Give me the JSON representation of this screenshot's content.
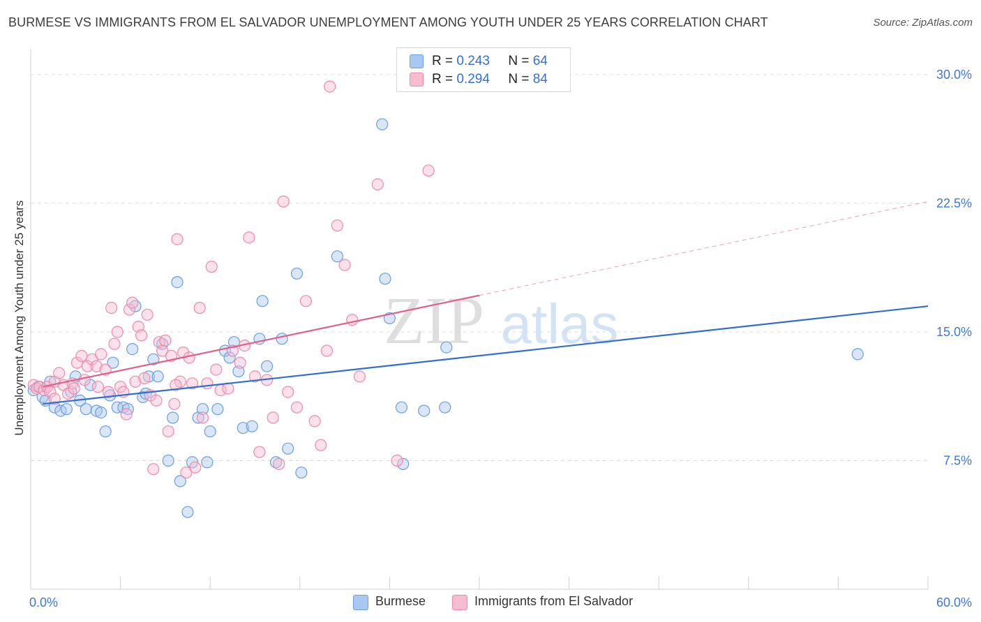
{
  "title": "BURMESE VS IMMIGRANTS FROM EL SALVADOR UNEMPLOYMENT AMONG YOUTH UNDER 25 YEARS CORRELATION CHART",
  "source": "Source: ZipAtlas.com",
  "watermark": {
    "zip": "ZIP",
    "atlas": "atlas"
  },
  "legend_top": {
    "r_label": "R =",
    "n_label": "N =",
    "rows": [
      {
        "r": "0.243",
        "n": "64"
      },
      {
        "r": "0.294",
        "n": "84"
      }
    ]
  },
  "colors": {
    "burmese_fill": "#a8c8f0",
    "burmese_stroke": "#6a9ee0",
    "burmese_line": "#2f6fd0",
    "salvador_fill": "#f8bcd0",
    "salvador_stroke": "#ec8aaa",
    "salvador_line": "#e0608a",
    "grid": "#dddddd",
    "axis_text": "#3c78d8"
  },
  "chart_data": {
    "type": "scatter",
    "title": "BURMESE VS IMMIGRANTS FROM EL SALVADOR UNEMPLOYMENT AMONG YOUTH UNDER 25 YEARS CORRELATION CHART",
    "xlabel": "",
    "ylabel": "Unemployment Among Youth under 25 years",
    "xlim": [
      0,
      60
    ],
    "ylim": [
      0,
      31.5
    ],
    "x_tick_labels": [
      "0.0%",
      "60.0%"
    ],
    "y_ticks": [
      7.5,
      15.0,
      22.5,
      30.0
    ],
    "y_tick_labels": [
      "7.5%",
      "15.0%",
      "22.5%",
      "30.0%"
    ],
    "legend_position": "bottom-center",
    "series": [
      {
        "name": "Burmese",
        "r": 0.243,
        "n": 64,
        "trend": {
          "x": [
            0.8,
            60
          ],
          "y": [
            10.8,
            16.5
          ],
          "dashed_from": null
        },
        "points": [
          [
            0.2,
            11.6
          ],
          [
            0.5,
            11.8
          ],
          [
            0.8,
            11.2
          ],
          [
            1.0,
            11.0
          ],
          [
            1.3,
            12.1
          ],
          [
            1.6,
            10.6
          ],
          [
            2.0,
            10.4
          ],
          [
            2.4,
            10.5
          ],
          [
            2.7,
            11.5
          ],
          [
            3.0,
            12.4
          ],
          [
            3.3,
            11.0
          ],
          [
            3.7,
            10.5
          ],
          [
            4.0,
            11.9
          ],
          [
            4.4,
            10.4
          ],
          [
            4.7,
            10.3
          ],
          [
            5.0,
            9.2
          ],
          [
            5.3,
            11.3
          ],
          [
            5.5,
            13.2
          ],
          [
            5.8,
            10.6
          ],
          [
            6.2,
            10.6
          ],
          [
            6.5,
            10.5
          ],
          [
            6.8,
            14.0
          ],
          [
            7.0,
            16.5
          ],
          [
            7.5,
            11.2
          ],
          [
            7.7,
            11.4
          ],
          [
            7.9,
            12.4
          ],
          [
            8.2,
            13.4
          ],
          [
            8.5,
            12.4
          ],
          [
            8.8,
            14.3
          ],
          [
            9.2,
            7.5
          ],
          [
            9.5,
            10.0
          ],
          [
            9.8,
            17.9
          ],
          [
            10.0,
            6.3
          ],
          [
            10.5,
            4.5
          ],
          [
            10.8,
            7.4
          ],
          [
            11.2,
            10.0
          ],
          [
            11.5,
            10.5
          ],
          [
            11.8,
            7.4
          ],
          [
            12.0,
            9.2
          ],
          [
            12.5,
            10.5
          ],
          [
            13.0,
            13.9
          ],
          [
            13.3,
            13.5
          ],
          [
            13.6,
            14.4
          ],
          [
            13.9,
            12.7
          ],
          [
            14.2,
            9.4
          ],
          [
            14.8,
            9.5
          ],
          [
            15.3,
            14.6
          ],
          [
            15.5,
            16.8
          ],
          [
            15.8,
            13.0
          ],
          [
            16.4,
            7.4
          ],
          [
            16.8,
            14.6
          ],
          [
            17.2,
            8.2
          ],
          [
            17.8,
            18.4
          ],
          [
            18.1,
            6.8
          ],
          [
            20.5,
            19.4
          ],
          [
            23.5,
            27.1
          ],
          [
            23.7,
            18.1
          ],
          [
            24.0,
            15.8
          ],
          [
            24.8,
            10.6
          ],
          [
            24.9,
            7.3
          ],
          [
            26.3,
            10.4
          ],
          [
            27.7,
            10.6
          ],
          [
            27.8,
            14.1
          ],
          [
            55.3,
            13.7
          ]
        ]
      },
      {
        "name": "Immigrants from El Salvador",
        "r": 0.294,
        "n": 84,
        "trend": {
          "x": [
            0.8,
            60
          ],
          "y": [
            11.8,
            22.6
          ],
          "dashed_from": 30.0
        },
        "points": [
          [
            0.2,
            11.9
          ],
          [
            0.4,
            11.7
          ],
          [
            0.6,
            11.8
          ],
          [
            0.9,
            11.6
          ],
          [
            1.1,
            11.8
          ],
          [
            1.3,
            11.5
          ],
          [
            1.6,
            12.1
          ],
          [
            1.9,
            12.6
          ],
          [
            2.2,
            11.9
          ],
          [
            2.5,
            11.4
          ],
          [
            2.8,
            12.0
          ],
          [
            3.1,
            13.2
          ],
          [
            3.4,
            13.6
          ],
          [
            3.6,
            12.2
          ],
          [
            3.8,
            13.0
          ],
          [
            4.1,
            13.4
          ],
          [
            4.4,
            13.0
          ],
          [
            4.5,
            11.8
          ],
          [
            4.7,
            13.7
          ],
          [
            5.0,
            12.8
          ],
          [
            5.2,
            11.5
          ],
          [
            5.4,
            16.4
          ],
          [
            5.6,
            14.3
          ],
          [
            5.8,
            15.0
          ],
          [
            6.0,
            11.8
          ],
          [
            6.2,
            11.5
          ],
          [
            6.4,
            10.2
          ],
          [
            6.6,
            16.3
          ],
          [
            6.8,
            16.7
          ],
          [
            7.0,
            12.1
          ],
          [
            7.2,
            15.3
          ],
          [
            7.4,
            14.8
          ],
          [
            7.6,
            12.3
          ],
          [
            7.8,
            16.0
          ],
          [
            8.0,
            11.3
          ],
          [
            8.2,
            7.0
          ],
          [
            8.4,
            11.0
          ],
          [
            8.6,
            14.4
          ],
          [
            8.8,
            13.9
          ],
          [
            9.0,
            14.5
          ],
          [
            9.2,
            9.2
          ],
          [
            9.4,
            13.6
          ],
          [
            9.6,
            10.8
          ],
          [
            9.8,
            20.4
          ],
          [
            10.0,
            12.1
          ],
          [
            10.2,
            13.8
          ],
          [
            10.4,
            6.8
          ],
          [
            10.6,
            13.5
          ],
          [
            10.8,
            12.0
          ],
          [
            11.0,
            7.1
          ],
          [
            11.3,
            16.4
          ],
          [
            11.5,
            10.0
          ],
          [
            11.8,
            12.0
          ],
          [
            12.1,
            18.8
          ],
          [
            12.4,
            12.8
          ],
          [
            12.7,
            11.6
          ],
          [
            13.2,
            11.7
          ],
          [
            13.5,
            13.9
          ],
          [
            14.0,
            13.2
          ],
          [
            14.3,
            14.2
          ],
          [
            14.6,
            20.5
          ],
          [
            15.0,
            12.4
          ],
          [
            15.3,
            8.0
          ],
          [
            15.8,
            12.2
          ],
          [
            16.2,
            10.0
          ],
          [
            16.6,
            7.3
          ],
          [
            16.9,
            22.6
          ],
          [
            17.2,
            11.5
          ],
          [
            17.8,
            10.6
          ],
          [
            18.4,
            16.8
          ],
          [
            19.0,
            9.8
          ],
          [
            19.4,
            8.4
          ],
          [
            19.8,
            13.9
          ],
          [
            20.0,
            29.3
          ],
          [
            20.5,
            21.2
          ],
          [
            21.0,
            18.9
          ],
          [
            21.5,
            15.7
          ],
          [
            22.0,
            12.4
          ],
          [
            23.2,
            23.6
          ],
          [
            24.5,
            7.5
          ],
          [
            26.6,
            24.4
          ],
          [
            1.6,
            11.1
          ],
          [
            2.9,
            11.7
          ],
          [
            9.7,
            11.9
          ]
        ]
      }
    ]
  }
}
